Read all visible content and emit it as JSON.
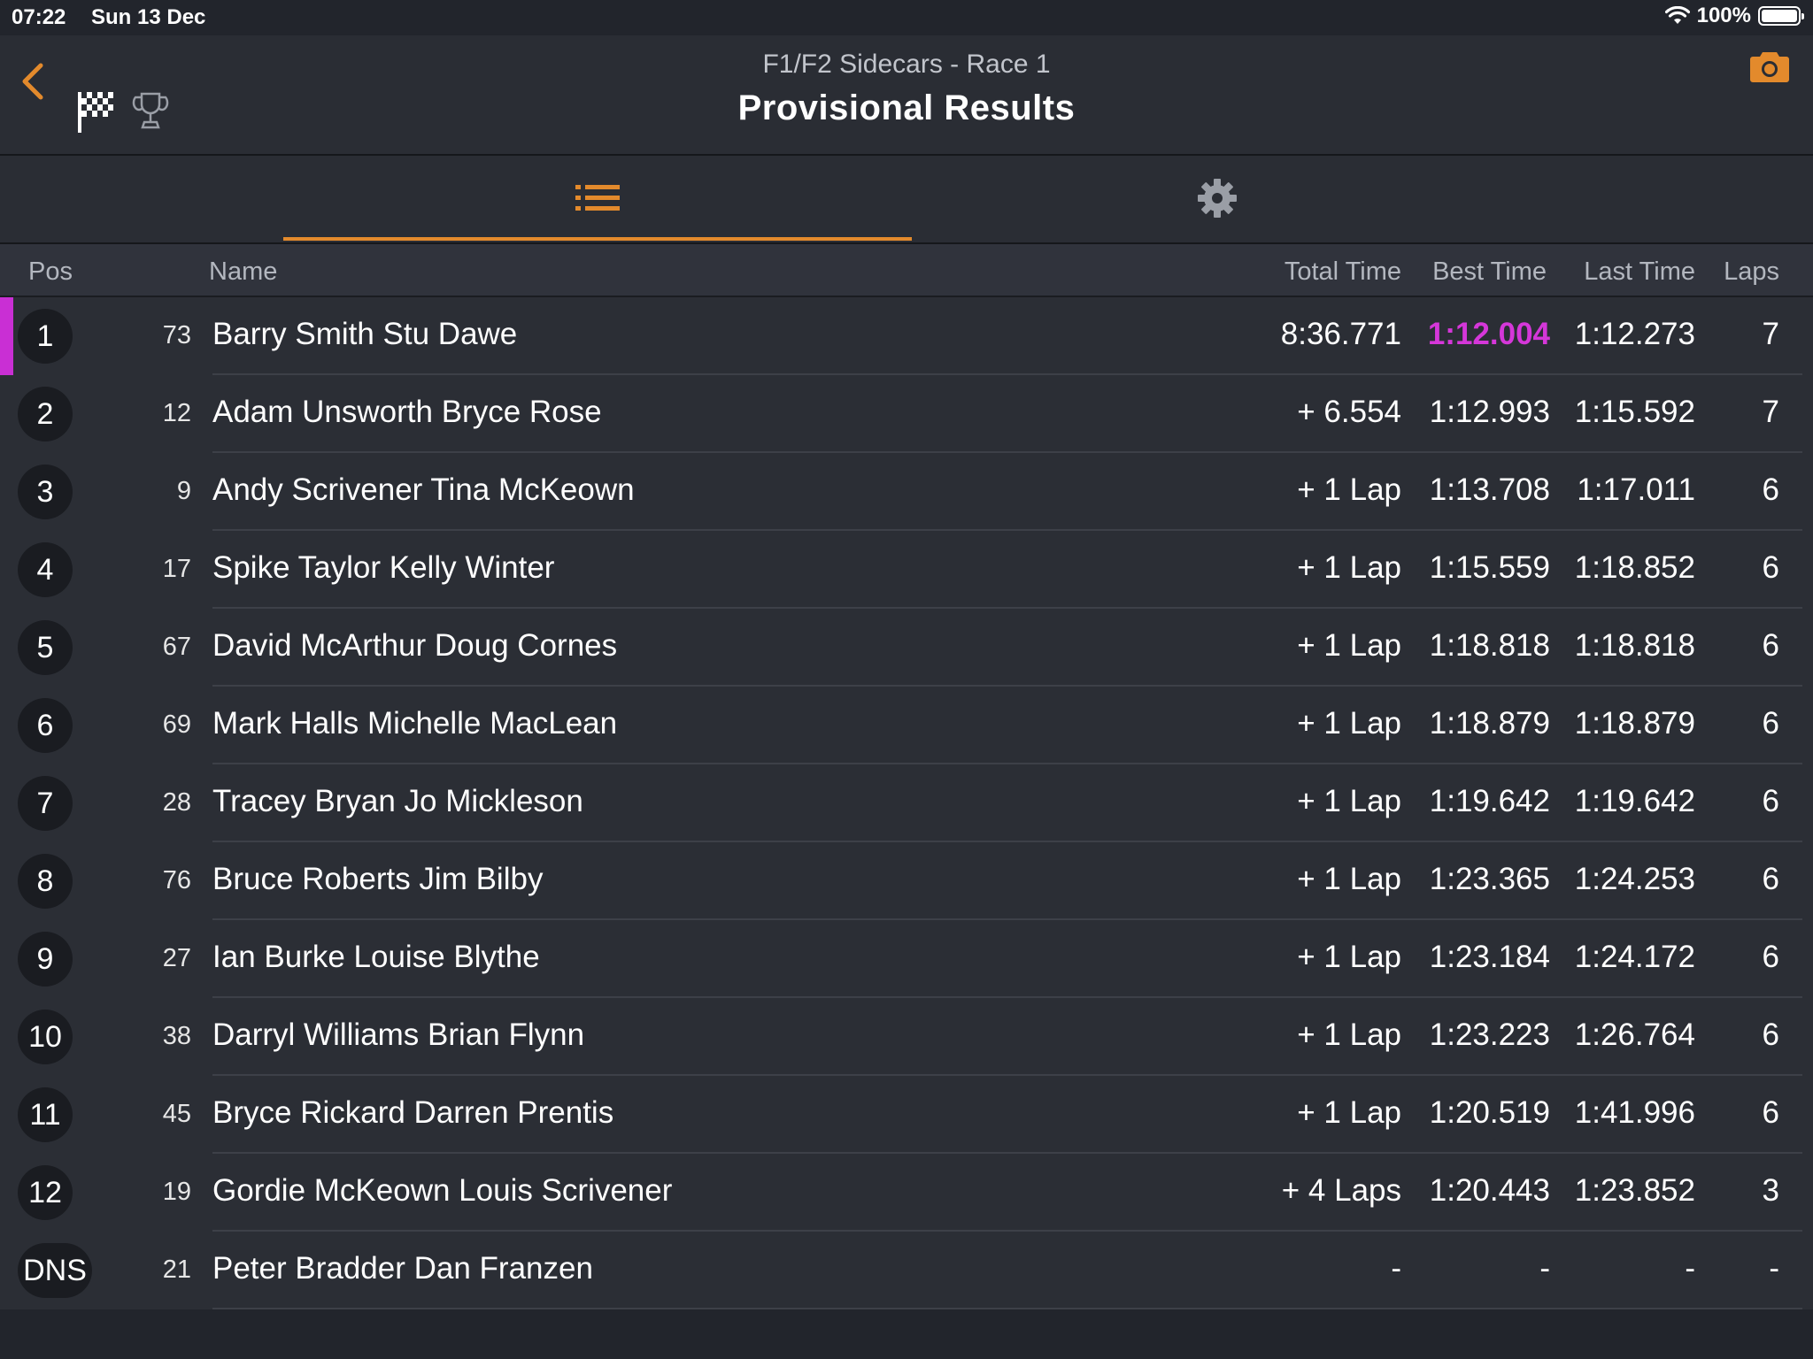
{
  "status_bar": {
    "time": "07:22",
    "date": "Sun 13 Dec",
    "battery": "100%"
  },
  "header": {
    "subtitle": "F1/F2 Sidecars - Race 1",
    "title": "Provisional Results"
  },
  "icons": {
    "back": "chevron-left-icon",
    "flag": "checkered-flag-icon",
    "trophy": "trophy-icon",
    "camera": "camera-icon",
    "list": "list-icon",
    "settings": "gear-icon"
  },
  "colors": {
    "accent": "#e38a2c",
    "fastest": "#d537d9",
    "leader_bar": "#c92fd4"
  },
  "columns": {
    "pos": "Pos",
    "name": "Name",
    "total": "Total Time",
    "best": "Best Time",
    "last": "Last Time",
    "laps": "Laps"
  },
  "results": [
    {
      "pos": "1",
      "num": "73",
      "name": "Barry Smith Stu Dawe",
      "total": "8:36.771",
      "best": "1:12.004",
      "last": "1:12.273",
      "laps": "7"
    },
    {
      "pos": "2",
      "num": "12",
      "name": "Adam Unsworth Bryce Rose",
      "total": "+ 6.554",
      "best": "1:12.993",
      "last": "1:15.592",
      "laps": "7"
    },
    {
      "pos": "3",
      "num": "9",
      "name": "Andy Scrivener Tina McKeown",
      "total": "+ 1 Lap",
      "best": "1:13.708",
      "last": "1:17.011",
      "laps": "6"
    },
    {
      "pos": "4",
      "num": "17",
      "name": "Spike Taylor Kelly Winter",
      "total": "+ 1 Lap",
      "best": "1:15.559",
      "last": "1:18.852",
      "laps": "6"
    },
    {
      "pos": "5",
      "num": "67",
      "name": "David McArthur Doug Cornes",
      "total": "+ 1 Lap",
      "best": "1:18.818",
      "last": "1:18.818",
      "laps": "6"
    },
    {
      "pos": "6",
      "num": "69",
      "name": "Mark Halls Michelle MacLean",
      "total": "+ 1 Lap",
      "best": "1:18.879",
      "last": "1:18.879",
      "laps": "6"
    },
    {
      "pos": "7",
      "num": "28",
      "name": "Tracey Bryan Jo Mickleson",
      "total": "+ 1 Lap",
      "best": "1:19.642",
      "last": "1:19.642",
      "laps": "6"
    },
    {
      "pos": "8",
      "num": "76",
      "name": "Bruce Roberts Jim Bilby",
      "total": "+ 1 Lap",
      "best": "1:23.365",
      "last": "1:24.253",
      "laps": "6"
    },
    {
      "pos": "9",
      "num": "27",
      "name": "Ian Burke Louise Blythe",
      "total": "+ 1 Lap",
      "best": "1:23.184",
      "last": "1:24.172",
      "laps": "6"
    },
    {
      "pos": "10",
      "num": "38",
      "name": "Darryl Williams Brian Flynn",
      "total": "+ 1 Lap",
      "best": "1:23.223",
      "last": "1:26.764",
      "laps": "6"
    },
    {
      "pos": "11",
      "num": "45",
      "name": "Bryce Rickard Darren Prentis",
      "total": "+ 1 Lap",
      "best": "1:20.519",
      "last": "1:41.996",
      "laps": "6"
    },
    {
      "pos": "12",
      "num": "19",
      "name": "Gordie McKeown Louis Scrivener",
      "total": "+ 4 Laps",
      "best": "1:20.443",
      "last": "1:23.852",
      "laps": "3"
    },
    {
      "pos": "DNS",
      "num": "21",
      "name": "Peter Bradder Dan Franzen",
      "total": "-",
      "best": "-",
      "last": "-",
      "laps": "-"
    }
  ]
}
